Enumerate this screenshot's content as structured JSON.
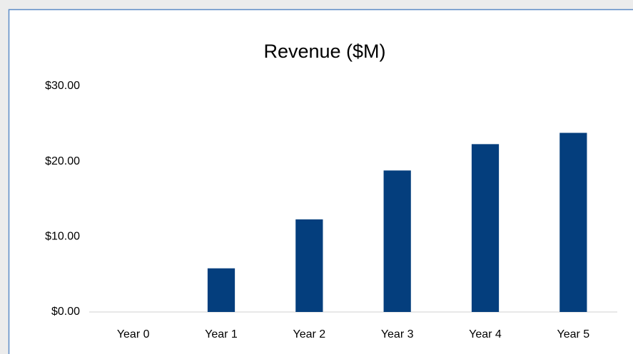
{
  "chart_data": {
    "type": "bar",
    "title": "Revenue ($M)",
    "categories": [
      "Year 0",
      "Year 1",
      "Year 2",
      "Year 3",
      "Year 4",
      "Year 5"
    ],
    "values": [
      0,
      5.8,
      12.3,
      18.8,
      22.3,
      23.8
    ],
    "color": "#043e7d",
    "ylim": [
      0,
      30
    ],
    "yticks": [
      {
        "value": 0,
        "label": "$0.00"
      },
      {
        "value": 10,
        "label": "$10.00"
      },
      {
        "value": 20,
        "label": "$20.00"
      },
      {
        "value": 30,
        "label": "$30.00"
      }
    ],
    "grid": false
  }
}
